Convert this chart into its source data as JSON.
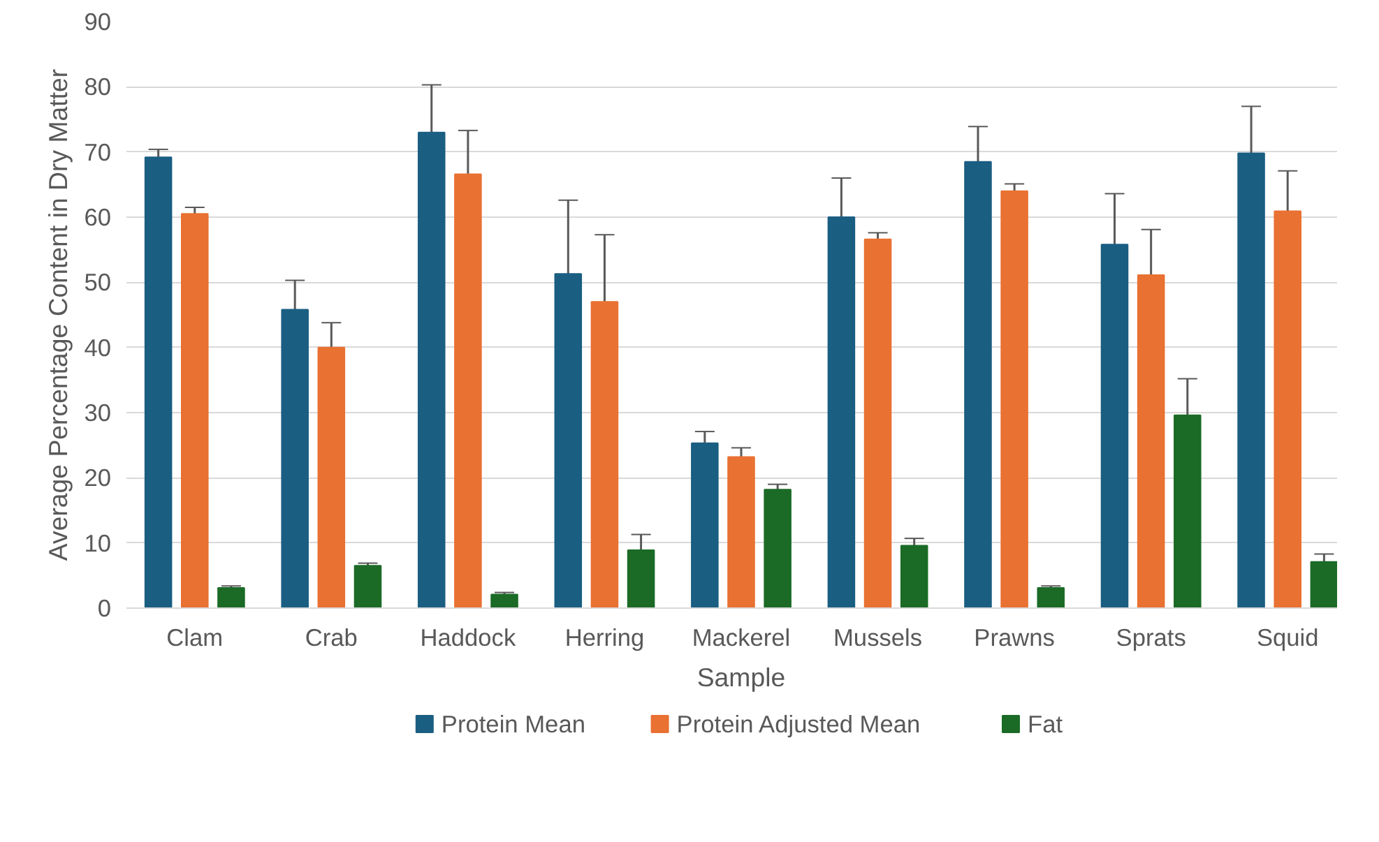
{
  "chart_data": {
    "type": "bar",
    "xlabel": "Sample",
    "ylabel": "Average Percentage Content in Dry Matter",
    "categories": [
      "Clam",
      "Crab",
      "Haddock",
      "Herring",
      "Mackerel",
      "Mussels",
      "Prawns",
      "Sprats",
      "Squid"
    ],
    "series": [
      {
        "name": "Protein Mean",
        "color": "#1a5e82",
        "values": [
          69.2,
          45.8,
          73.0,
          51.3,
          25.3,
          60.0,
          68.5,
          55.8,
          69.8
        ],
        "errors": [
          1.2,
          4.5,
          7.3,
          11.3,
          1.8,
          6.0,
          5.4,
          7.8,
          7.2
        ]
      },
      {
        "name": "Protein Adjusted Mean",
        "color": "#e97132",
        "values": [
          60.5,
          40.0,
          66.6,
          47.0,
          23.2,
          56.6,
          64.0,
          51.1,
          60.9
        ],
        "errors": [
          1.0,
          3.8,
          6.7,
          10.3,
          1.4,
          1.0,
          1.1,
          7.0,
          6.2
        ]
      },
      {
        "name": "Fat",
        "color": "#1b6b26",
        "values": [
          3.1,
          6.5,
          2.1,
          8.9,
          18.2,
          9.6,
          3.1,
          29.6,
          7.1
        ],
        "errors": [
          0.3,
          0.4,
          0.3,
          2.4,
          0.8,
          1.1,
          0.3,
          5.6,
          1.2
        ]
      }
    ],
    "ylim": [
      0,
      90
    ],
    "yticks": [
      0,
      10,
      20,
      30,
      40,
      50,
      60,
      70,
      80,
      90
    ],
    "grid": "y",
    "legend": "bottom"
  }
}
